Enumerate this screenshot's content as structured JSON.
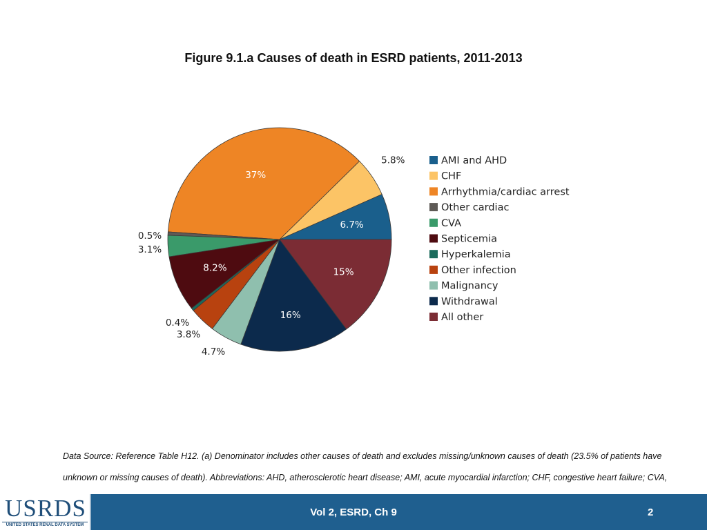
{
  "title": "Figure 9.1.a Causes of death in ESRD patients, 2011-2013",
  "chart_data": {
    "type": "pie",
    "title": "Figure 9.1.a Causes of death in ESRD patients, 2011-2013",
    "legend_position": "right",
    "slices": [
      {
        "name": "AMI and AHD",
        "value": 6.7,
        "label": "6.7%",
        "color": "#1a5f8c",
        "label_text_color": "#ffffff"
      },
      {
        "name": "CHF",
        "value": 5.8,
        "label": "5.8%",
        "color": "#fcc466",
        "label_text_color": "#222222"
      },
      {
        "name": "Arrhythmia/cardiac arrest",
        "value": 37,
        "label": "37%",
        "color": "#ee8525",
        "label_text_color": "#ffffff"
      },
      {
        "name": "Other cardiac",
        "value": 0.5,
        "label": "0.5%",
        "color": "#5e5a56",
        "label_text_color": "#222222"
      },
      {
        "name": "CVA",
        "value": 3.1,
        "label": "3.1%",
        "color": "#3a9a6a",
        "label_text_color": "#222222"
      },
      {
        "name": "Septicemia",
        "value": 8.2,
        "label": "8.2%",
        "color": "#4e0b10",
        "label_text_color": "#ffffff"
      },
      {
        "name": "Hyperkalemia",
        "value": 0.4,
        "label": "0.4%",
        "color": "#1b6b5c",
        "label_text_color": "#222222"
      },
      {
        "name": "Other infection",
        "value": 3.8,
        "label": "3.8%",
        "color": "#b8420f",
        "label_text_color": "#222222"
      },
      {
        "name": "Malignancy",
        "value": 4.7,
        "label": "4.7%",
        "color": "#8fbfae",
        "label_text_color": "#222222"
      },
      {
        "name": "Withdrawal",
        "value": 16,
        "label": "16%",
        "color": "#0c2a4c",
        "label_text_color": "#ffffff"
      },
      {
        "name": "All other",
        "value": 15,
        "label": "15%",
        "color": "#7b2c34",
        "label_text_color": "#ffffff"
      }
    ]
  },
  "footnote": "Data Source: Reference Table H12. (a) Denominator includes other causes of death and excludes missing/unknown causes of death (23.5% of patients have unknown or missing causes of death). Abbreviations: AHD, atherosclerotic heart disease; AMI, acute myocardial infarction; CHF, congestive heart failure; CVA, cerebrovascular accident; ESRD, end-stage renal disease.",
  "footer": {
    "logo_text": "USRDS",
    "logo_subtitle": "UNITED STATES RENAL DATA SYSTEM",
    "center_text": "Vol 2, ESRD, Ch 9",
    "page_number": "2"
  }
}
